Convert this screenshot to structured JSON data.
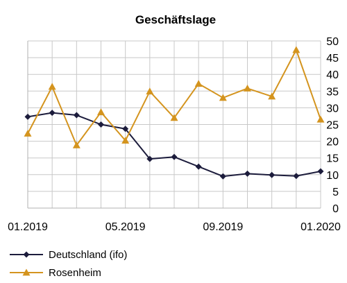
{
  "chart_data": {
    "type": "line",
    "title": "Geschäftslage",
    "x": [
      "01.2019",
      "02.2019",
      "03.2019",
      "04.2019",
      "05.2019",
      "06.2019",
      "07.2019",
      "08.2019",
      "09.2019",
      "10.2019",
      "11.2019",
      "12.2019",
      "01.2020"
    ],
    "x_tick_labels": [
      "01.2019",
      "05.2019",
      "09.2019",
      "01.2020"
    ],
    "ylim": [
      0,
      50
    ],
    "y_ticks": [
      0,
      5,
      10,
      15,
      20,
      25,
      30,
      35,
      40,
      45,
      50
    ],
    "y_axis_side": "right",
    "grid": true,
    "legend_position": "bottom",
    "series": [
      {
        "name": "Deutschland (ifo)",
        "color": "#1c1c3c",
        "marker": "diamond",
        "values": [
          27.3,
          28.5,
          27.8,
          25.0,
          23.7,
          14.7,
          15.3,
          12.4,
          9.5,
          10.3,
          9.9,
          9.6,
          11.0
        ]
      },
      {
        "name": "Rosenheim",
        "color": "#d4941e",
        "marker": "triangle",
        "values": [
          22.3,
          36.3,
          18.8,
          28.7,
          20.2,
          34.9,
          27.0,
          37.2,
          33.0,
          35.8,
          33.4,
          47.3,
          26.5
        ]
      }
    ]
  }
}
